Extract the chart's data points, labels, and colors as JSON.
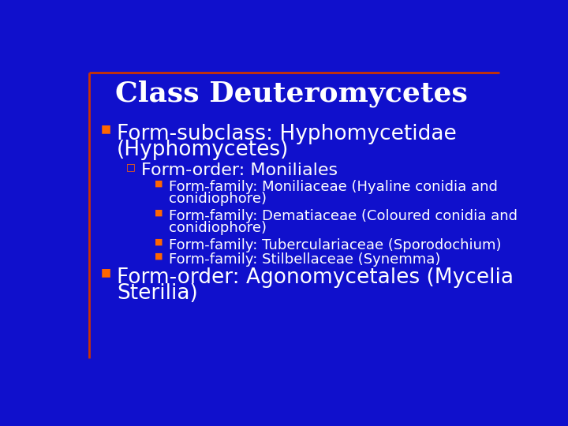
{
  "title": "Class Deuteromycetes",
  "bg_color": "#1010CC",
  "title_color": "#FFFFFF",
  "text_color": "#FFFFFF",
  "bullet_color": "#FF6600",
  "border_color": "#CC3300",
  "title_fontsize": 26,
  "level1_fontsize": 19,
  "level2_fontsize": 16,
  "level3_fontsize": 13,
  "level1_bullet": "■",
  "level2_bullet": "□",
  "level3_bullet": "■",
  "content": [
    {
      "level": 1,
      "text": "Form-subclass: Hyphomycetidae\n(Hyphomycetes)"
    },
    {
      "level": 2,
      "text": "Form-order: Moniliales"
    },
    {
      "level": 3,
      "text": "Form-family: Moniliaceae (Hyaline conidia and\nconidiophore)"
    },
    {
      "level": 3,
      "text": "Form-family: Dematiaceae (Coloured conidia and\nconidiophore)"
    },
    {
      "level": 3,
      "text": "Form-family: Tuberculariaceae (Sporodochium)"
    },
    {
      "level": 3,
      "text": "Form-family: Stilbellaceae (Synemma)"
    },
    {
      "level": 1,
      "text": "Form-order: Agonomycetales (Mycelia\nSterilia)"
    }
  ]
}
